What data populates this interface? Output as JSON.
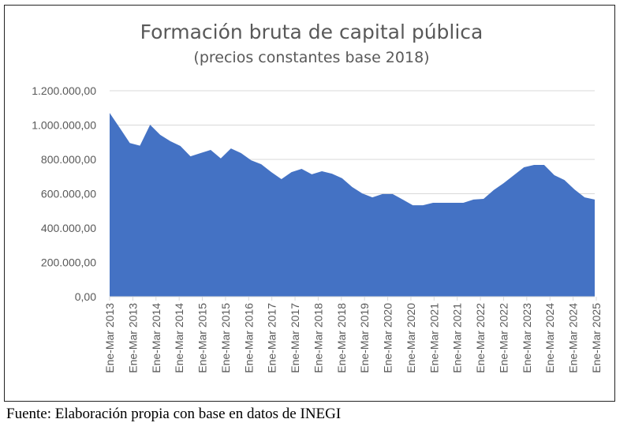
{
  "chart_data": {
    "type": "area",
    "title": "Formación bruta de capital pública",
    "subtitle": "(precios constantes base 2018)",
    "xlabel": "",
    "ylabel": "",
    "ylim": [
      0,
      1200000
    ],
    "yticks": [
      "0,00",
      "200.000,00",
      "400.000,00",
      "600.000,00",
      "800.000,00",
      "1.000.000,00",
      "1.200.000,00"
    ],
    "ytick_values": [
      0,
      200000,
      400000,
      600000,
      800000,
      1000000,
      1200000
    ],
    "xtick_labels": [
      "Ene-Mar 2013",
      "Ene-Mar 2013",
      "Ene-Mar 2014",
      "Ene-Mar 2014",
      "Ene-Mar 2015",
      "Ene-Mar 2015",
      "Ene-Mar 2016",
      "Ene-Mar 2017",
      "Ene-Mar 2017",
      "Ene-Mar 2018",
      "Ene-Mar 2018",
      "Ene-Mar 2019",
      "Ene-Mar 2020",
      "Ene-Mar 2020",
      "Ene-Mar 2021",
      "Ene-Mar 2021",
      "Ene-Mar 2022",
      "Ene-Mar 2022",
      "Ene-Mar 2023",
      "Ene-Mar 2024",
      "Ene-Mar 2024",
      "Ene-Mar 2025"
    ],
    "grid": true,
    "color": "#4472C4",
    "values": [
      1071000,
      984000,
      895000,
      880000,
      1002000,
      943000,
      906000,
      878000,
      818000,
      837000,
      855000,
      806000,
      864000,
      837000,
      795000,
      772000,
      726000,
      685000,
      726000,
      745000,
      713000,
      731000,
      717000,
      690000,
      639000,
      602000,
      579000,
      598000,
      598000,
      566000,
      533000,
      533000,
      547000,
      547000,
      547000,
      547000,
      566000,
      570000,
      621000,
      662000,
      708000,
      754000,
      768000,
      768000,
      708000,
      680000,
      625000,
      579000,
      566000
    ]
  },
  "source": "Fuente: Elaboración propia con base en datos de INEGI"
}
